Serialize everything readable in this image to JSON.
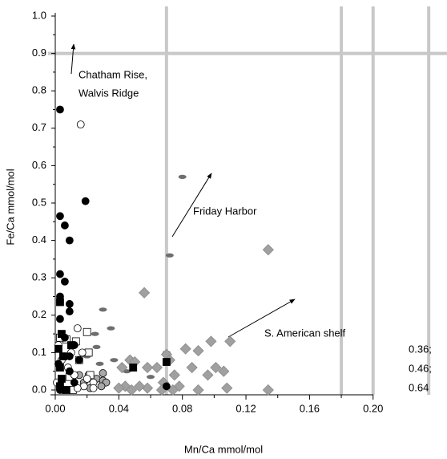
{
  "chart_data": {
    "type": "scatter",
    "x_label": "Mn/Ca mmol/mol",
    "y_label": "Fe/Ca mmol/mol",
    "xlim": [
      0,
      0.246
    ],
    "ylim": [
      0,
      1.0
    ],
    "xticks": [
      {
        "value": 0,
        "label": "0.00"
      },
      0.04,
      0.08,
      0.12,
      0.16,
      {
        "value": 0.2,
        "label": "0.20"
      }
    ],
    "yticks": [
      {
        "value": 0,
        "label": "0.0"
      },
      0.1,
      0.2,
      0.3,
      0.4,
      0.5,
      0.6,
      0.7,
      0.8,
      0.9,
      {
        "value": 1,
        "label": "1.0"
      }
    ],
    "reference_color": "#c8c8c8",
    "hlines": [
      0.9
    ],
    "vlines": [
      0.07,
      0.18,
      0.2,
      0.235
    ],
    "annotations": [
      "Chatham Rise,",
      "Walvis Ridge",
      "Friday Harbor",
      "S. American shelf"
    ],
    "side_notes": [
      "0.36;",
      "0.46;",
      "0.64"
    ],
    "series": [
      {
        "color": "#6e6e6e",
        "marker": "ellipse",
        "x": [
          0.08,
          0.072,
          0.03,
          0.035,
          0.025,
          0.026,
          0.015,
          0.028,
          0.06,
          0.045,
          0.07,
          0.037,
          0.02
        ],
        "values": [
          0.57,
          0.36,
          0.215,
          0.165,
          0.15,
          0.115,
          0.04,
          0.07,
          0.035,
          0.05,
          0.1,
          0.08,
          0.09
        ]
      },
      {
        "color": "#a0a0a0",
        "marker": "diamond",
        "x": [
          0.134,
          0.056,
          0.11,
          0.098,
          0.09,
          0.082,
          0.07,
          0.072,
          0.047,
          0.05,
          0.042,
          0.058,
          0.064,
          0.086,
          0.096,
          0.101,
          0.106,
          0.075,
          0.068,
          0.078,
          0.044,
          0.04,
          0.048,
          0.058,
          0.067,
          0.074,
          0.09,
          0.108,
          0.134,
          0.053
        ],
        "values": [
          0.375,
          0.26,
          0.13,
          0.13,
          0.105,
          0.11,
          0.095,
          0.08,
          0.08,
          0.075,
          0.06,
          0.06,
          0.06,
          0.06,
          0.04,
          0.06,
          0.05,
          0.04,
          0.02,
          0.01,
          0.01,
          0.005,
          0.0,
          0.005,
          0.0,
          0.0,
          0.0,
          0.005,
          0.0,
          0.01
        ]
      },
      {
        "color": "#a8a8a8",
        "marker": "circle",
        "x": [
          0.018,
          0.021,
          0.026,
          0.03,
          0.032,
          0.029,
          0.022,
          0.015,
          0.03
        ],
        "values": [
          0.02,
          0.04,
          0.03,
          0.025,
          0.02,
          0.01,
          0.005,
          0.04,
          0.045
        ]
      },
      {
        "color": "#ffffff",
        "marker": "square",
        "x": [
          0.007,
          0.013,
          0.02,
          0.021,
          0.015,
          0.009,
          0.022,
          0.011,
          0.003
        ],
        "values": [
          0.135,
          0.13,
          0.155,
          0.1,
          0.08,
          0.035,
          0.04,
          0.0,
          0.14
        ]
      },
      {
        "color": "#ffffff",
        "marker": "circle",
        "x": [
          0.016,
          0.014,
          0.002,
          0.01,
          0.017,
          0.004,
          0.008,
          0.012,
          0.02,
          0.018,
          0.024,
          0.001,
          0.005,
          0.014,
          0.024
        ],
        "values": [
          0.71,
          0.165,
          0.12,
          0.1,
          0.1,
          0.08,
          0.06,
          0.04,
          0.03,
          0.01,
          0.02,
          0.02,
          0.0,
          0.005,
          0.005
        ]
      },
      {
        "color": "#000000",
        "marker": "square",
        "x": [
          0.003,
          0.004,
          0.002,
          0.005,
          0.003,
          0.004,
          0.003,
          0.01,
          0.007,
          0.049,
          0.07
        ],
        "values": [
          0.235,
          0.15,
          0.11,
          0.09,
          0.06,
          0.03,
          0.01,
          0.12,
          0.0,
          0.06,
          0.075
        ]
      },
      {
        "color": "#000000",
        "marker": "circle",
        "x": [
          0.003,
          0.019,
          0.003,
          0.006,
          0.009,
          0.003,
          0.006,
          0.003,
          0.009,
          0.009,
          0.003,
          0.006,
          0.012,
          0.009,
          0.002,
          0.015,
          0.009,
          0.012,
          0.003,
          0.07
        ],
        "values": [
          0.75,
          0.505,
          0.465,
          0.44,
          0.4,
          0.31,
          0.29,
          0.25,
          0.23,
          0.21,
          0.19,
          0.14,
          0.12,
          0.09,
          0.07,
          0.08,
          0.05,
          0.02,
          0.0,
          0.01
        ]
      }
    ]
  }
}
